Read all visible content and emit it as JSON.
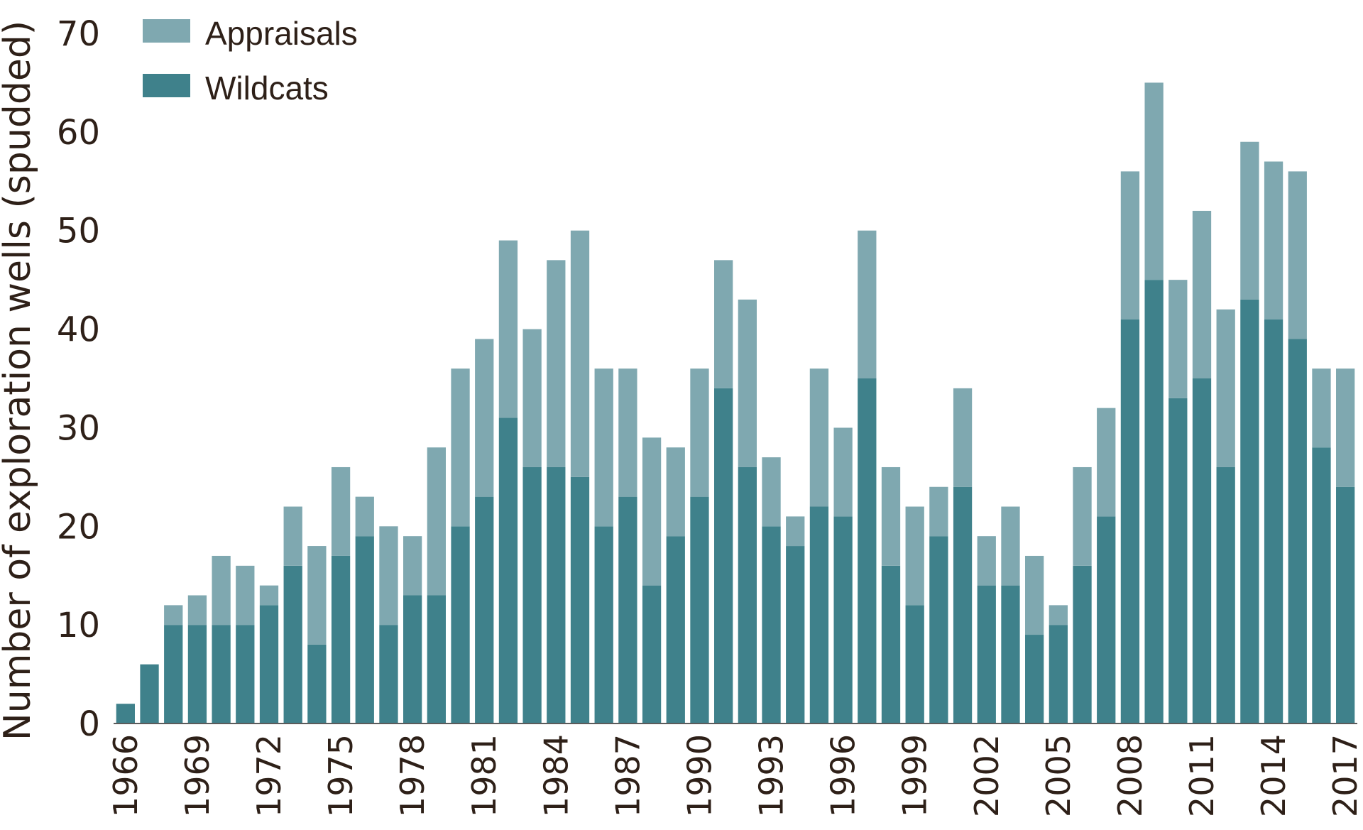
{
  "chart_data": {
    "type": "bar",
    "stacked": true,
    "title": "",
    "xlabel": "",
    "ylabel": "Number of exploration wells (spudded)",
    "ylim": [
      0,
      70
    ],
    "yticks": [
      0,
      10,
      20,
      30,
      40,
      50,
      60,
      70
    ],
    "xtick_labels": [
      "1966",
      "1969",
      "1972",
      "1975",
      "1978",
      "1981",
      "1984",
      "1987",
      "1990",
      "1993",
      "1996",
      "1999",
      "2002",
      "2005",
      "2008",
      "2011",
      "2014",
      "2017"
    ],
    "legend_position": "top-left",
    "categories": [
      1966,
      1967,
      1968,
      1969,
      1970,
      1971,
      1972,
      1973,
      1974,
      1975,
      1976,
      1977,
      1978,
      1979,
      1980,
      1981,
      1982,
      1983,
      1984,
      1985,
      1986,
      1987,
      1988,
      1989,
      1990,
      1991,
      1992,
      1993,
      1994,
      1995,
      1996,
      1997,
      1998,
      1999,
      2000,
      2001,
      2002,
      2003,
      2004,
      2005,
      2006,
      2007,
      2008,
      2009,
      2010,
      2011,
      2012,
      2013,
      2014,
      2015,
      2016,
      2017
    ],
    "series": [
      {
        "name": "Wildcats",
        "color": "#3f818b",
        "values": [
          2,
          6,
          10,
          10,
          10,
          10,
          12,
          16,
          8,
          17,
          19,
          10,
          13,
          13,
          20,
          23,
          31,
          26,
          26,
          25,
          20,
          23,
          14,
          19,
          23,
          34,
          26,
          20,
          18,
          22,
          21,
          35,
          16,
          12,
          19,
          24,
          14,
          14,
          9,
          10,
          16,
          21,
          41,
          45,
          33,
          35,
          26,
          43,
          41,
          39,
          28,
          24
        ]
      },
      {
        "name": "Appraisals",
        "color": "#7fa8b0",
        "values": [
          0,
          0,
          2,
          3,
          7,
          6,
          2,
          6,
          10,
          9,
          4,
          10,
          6,
          15,
          16,
          16,
          18,
          14,
          21,
          25,
          16,
          13,
          15,
          9,
          13,
          13,
          17,
          7,
          3,
          14,
          9,
          15,
          10,
          10,
          5,
          10,
          5,
          8,
          8,
          2,
          10,
          11,
          15,
          20,
          12,
          17,
          16,
          16,
          16,
          17,
          8,
          12
        ]
      }
    ]
  }
}
